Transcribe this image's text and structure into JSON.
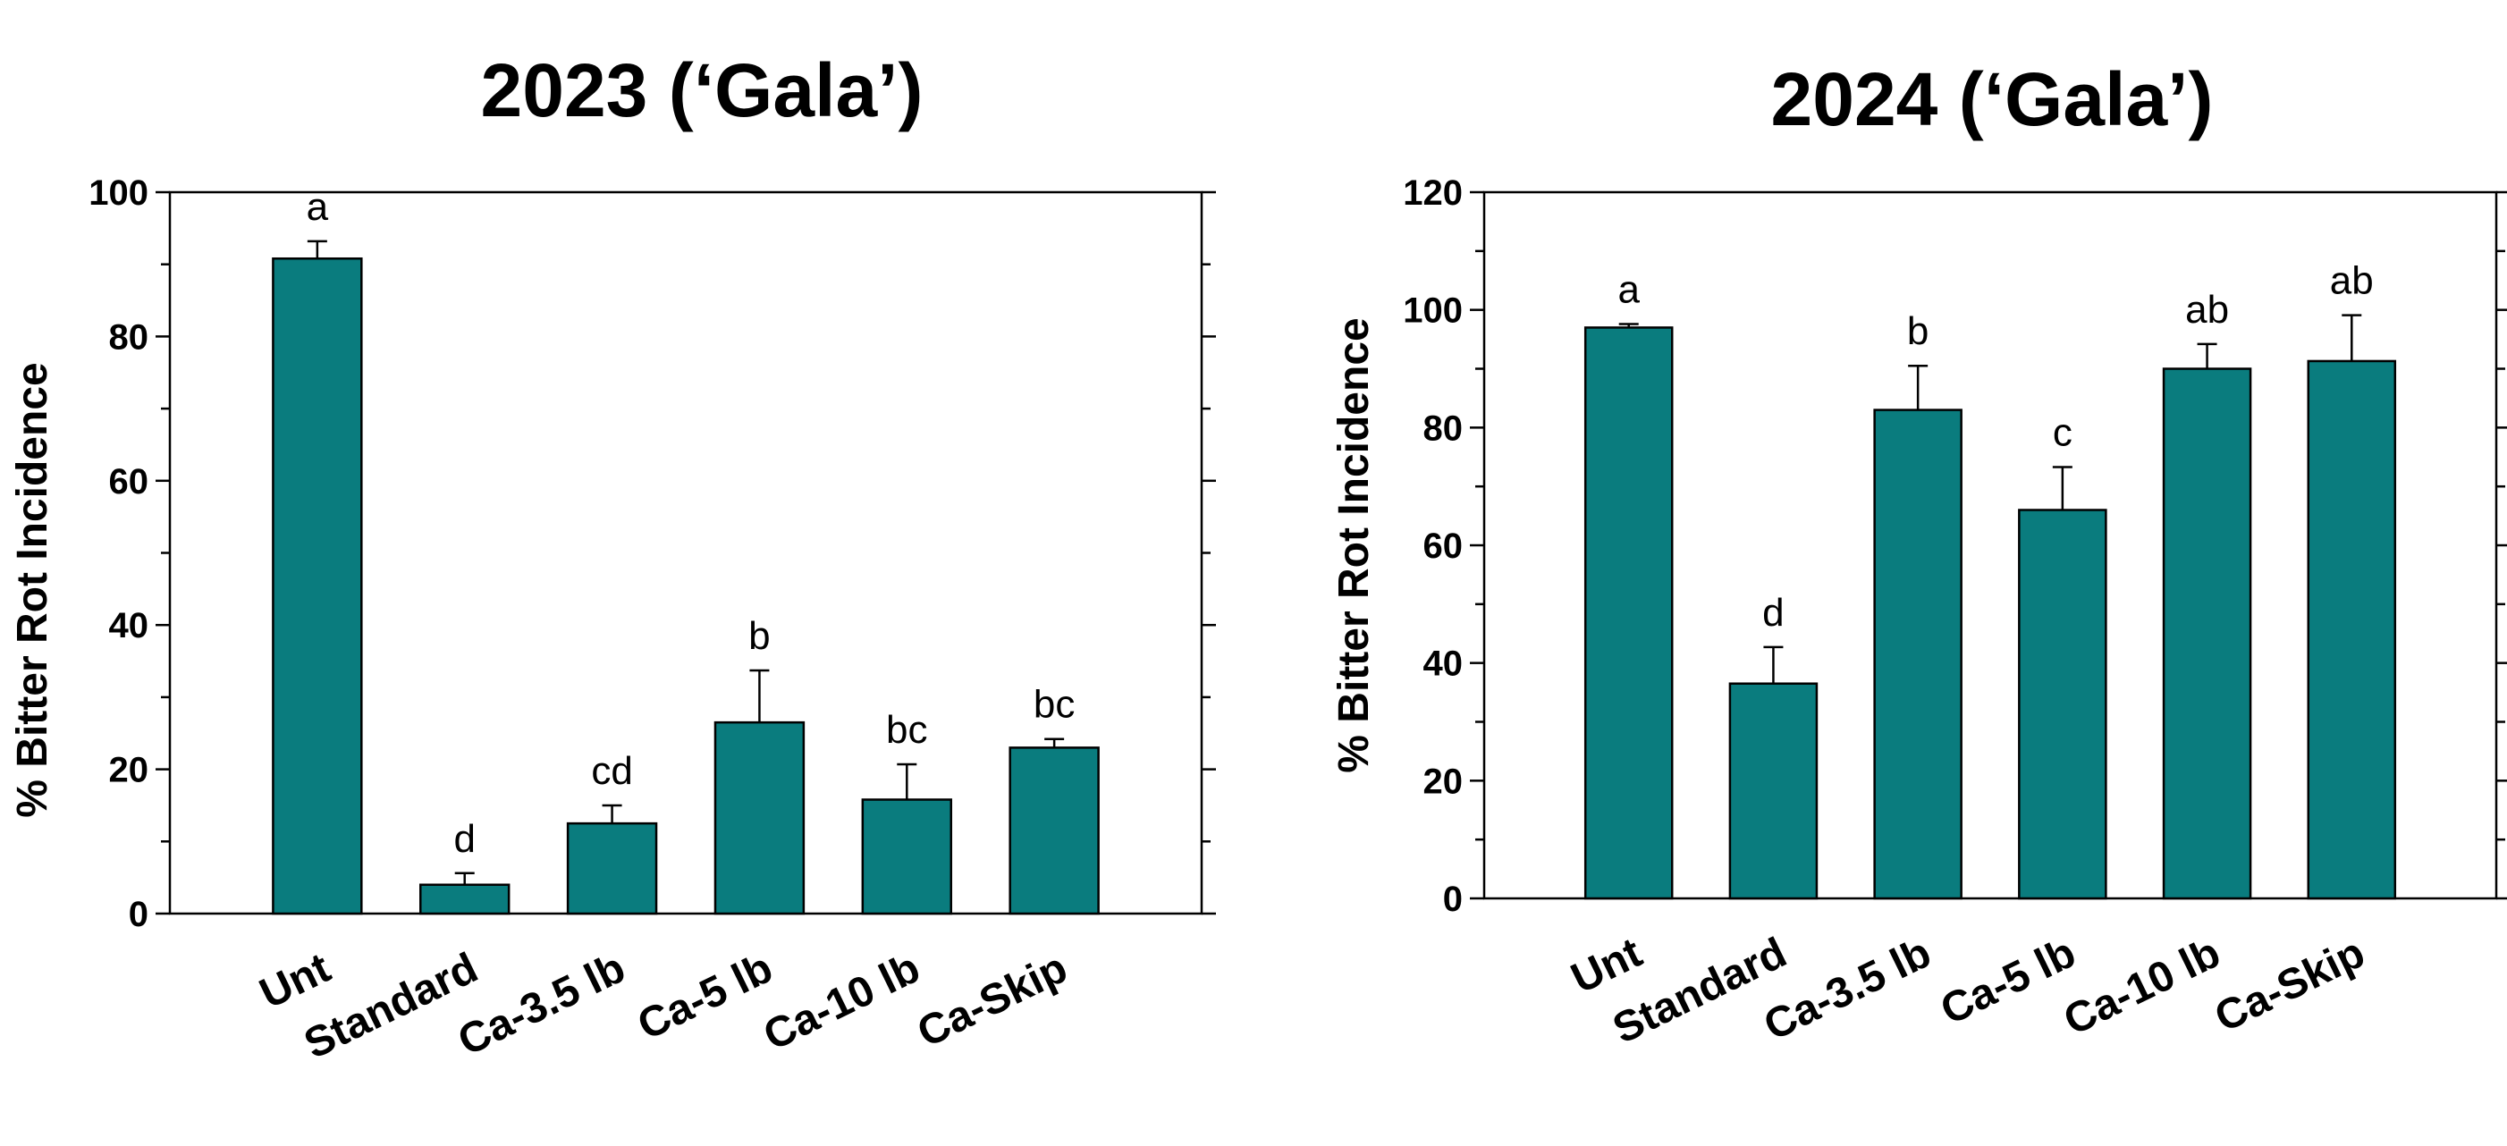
{
  "bar_color": "#0A7C7E",
  "chart_data": [
    {
      "type": "bar",
      "title": "2023 (‘Gala’)",
      "xlabel": "",
      "ylabel": "% Bitter Rot Incidence",
      "ylim": [
        0,
        100
      ],
      "yticks": [
        0,
        20,
        40,
        60,
        80,
        100
      ],
      "minor_tick_step": 10,
      "grid": false,
      "categories": [
        "Unt",
        "Standard",
        "Ca-3.5 lb",
        "Ca-5 lb",
        "Ca-10 lb",
        "Ca-Skip"
      ],
      "values": [
        90.8,
        4.0,
        12.5,
        26.5,
        15.8,
        23.0
      ],
      "error_upper": [
        2.4,
        1.6,
        2.5,
        7.2,
        4.9,
        1.2
      ],
      "significance": [
        "a",
        "d",
        "cd",
        "b",
        "bc",
        "bc"
      ]
    },
    {
      "type": "bar",
      "title": "2024 (‘Gala’)",
      "xlabel": "",
      "ylabel": "% Bitter Rot Incidence",
      "ylim": [
        0,
        120
      ],
      "yticks": [
        0,
        20,
        40,
        60,
        80,
        100,
        120
      ],
      "minor_tick_step": 10,
      "grid": false,
      "categories": [
        "Unt",
        "Standard",
        "Ca-3.5 lb",
        "Ca-5 lb",
        "Ca-10 lb",
        "Ca-Skip"
      ],
      "values": [
        97.0,
        36.5,
        83.0,
        66.0,
        90.0,
        91.3
      ],
      "error_upper": [
        0.6,
        6.2,
        7.5,
        7.3,
        4.2,
        7.8
      ],
      "significance": [
        "a",
        "d",
        "b",
        "c",
        "ab",
        "ab"
      ]
    }
  ]
}
